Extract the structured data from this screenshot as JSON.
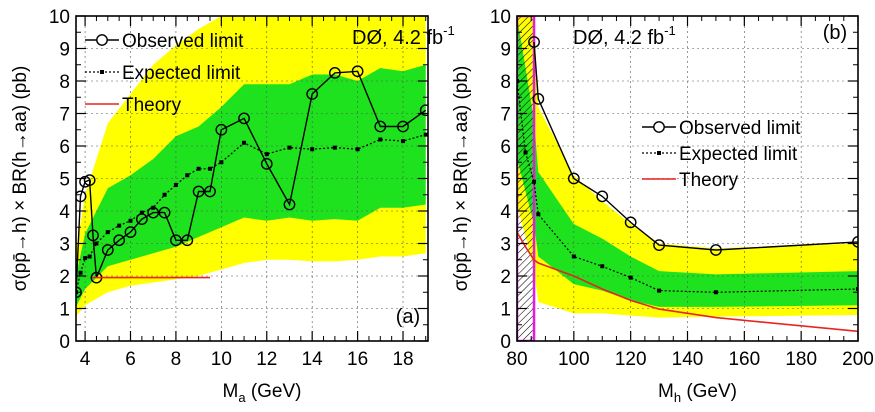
{
  "chart_data": [
    {
      "panel": "(a)",
      "type": "line",
      "experiment_label": "DØ, 4.2 fb",
      "experiment_label_sup": "-1",
      "xlabel": "M",
      "xlabel_sub": "a",
      "xlabel_unit": "(GeV)",
      "ylabel": "σ(pp̄→h) × BR(h→aa) (pb)",
      "xlim": [
        3.6,
        19.1
      ],
      "ylim": [
        0,
        10
      ],
      "xticks": [
        "4",
        "6",
        "8",
        "10",
        "12",
        "14",
        "16",
        "18"
      ],
      "yticks": [
        "0",
        "1",
        "2",
        "3",
        "4",
        "5",
        "6",
        "7",
        "8",
        "9",
        "10"
      ],
      "grid": true,
      "legend_position": "top-left",
      "series": [
        {
          "name": "Observed limit",
          "style": "line-open-circles",
          "color": "#000000",
          "x": [
            3.6,
            3.8,
            4.0,
            4.2,
            4.35,
            4.5,
            5.0,
            5.5,
            6.0,
            6.5,
            7.0,
            7.5,
            8.0,
            8.5,
            9.0,
            9.5,
            10.0,
            11.0,
            12.0,
            13.0,
            14.0,
            15.0,
            16.0,
            17.0,
            18.0,
            19.0
          ],
          "y": [
            1.5,
            4.45,
            4.9,
            4.95,
            3.25,
            1.95,
            2.8,
            3.1,
            3.35,
            3.75,
            3.95,
            3.95,
            3.1,
            3.1,
            4.6,
            4.6,
            6.5,
            6.85,
            5.45,
            4.2,
            7.6,
            8.25,
            8.3,
            6.6,
            6.6,
            7.1
          ]
        },
        {
          "name": "Expected limit",
          "style": "dotted-small-squares",
          "color": "#000000",
          "x": [
            3.6,
            3.8,
            4.0,
            4.2,
            4.5,
            5.0,
            5.5,
            6.0,
            6.5,
            7.0,
            7.5,
            8.0,
            8.5,
            9.0,
            9.5,
            10.0,
            11.0,
            12.0,
            13.0,
            14.0,
            15.0,
            16.0,
            17.0,
            18.0,
            19.0
          ],
          "y": [
            1.5,
            2.1,
            2.55,
            2.6,
            3.0,
            3.35,
            3.55,
            3.7,
            3.95,
            4.1,
            4.5,
            4.8,
            5.1,
            5.3,
            5.3,
            5.5,
            6.1,
            5.75,
            5.95,
            5.9,
            5.95,
            5.9,
            6.2,
            6.15,
            6.35
          ]
        },
        {
          "name": "Theory",
          "style": "line",
          "color": "#e8251f",
          "x": [
            4.3,
            9.5
          ],
          "y": [
            1.95,
            1.95
          ]
        }
      ],
      "band_1sigma": {
        "color": "#1fe21f",
        "x": [
          3.6,
          4.0,
          5.0,
          6.0,
          7.0,
          8.0,
          9.0,
          10.0,
          11.0,
          12.0,
          13.0,
          14.0,
          15.0,
          16.0,
          17.0,
          18.0,
          19.0
        ],
        "lower": [
          1.05,
          1.6,
          2.3,
          2.5,
          2.7,
          2.9,
          3.2,
          3.5,
          3.8,
          3.7,
          3.8,
          3.7,
          3.75,
          3.7,
          4.1,
          4.1,
          4.2
        ],
        "upper": [
          2.0,
          3.3,
          4.7,
          5.1,
          5.6,
          6.3,
          6.6,
          7.2,
          7.9,
          7.9,
          7.9,
          8.2,
          8.2,
          8.0,
          8.4,
          8.3,
          8.5
        ]
      },
      "band_2sigma": {
        "color": "#ffff00",
        "x": [
          3.6,
          4.0,
          5.0,
          6.0,
          7.0,
          8.0,
          9.0,
          10.0,
          11.0,
          12.0,
          13.0,
          14.0,
          15.0,
          16.0,
          17.0,
          18.0,
          19.0
        ],
        "lower": [
          0.75,
          1.1,
          1.5,
          1.7,
          1.8,
          1.9,
          2.0,
          2.2,
          2.4,
          2.5,
          2.5,
          2.45,
          2.45,
          2.5,
          2.6,
          2.6,
          2.7
        ],
        "upper": [
          2.8,
          4.5,
          6.7,
          7.6,
          8.5,
          9.1,
          9.6,
          10.0,
          10.0,
          10.0,
          10.0,
          10.0,
          10.0,
          10.0,
          10.0,
          10.0,
          10.0
        ]
      }
    },
    {
      "panel": "(b)",
      "type": "line",
      "experiment_label": "DØ, 4.2 fb",
      "experiment_label_sup": "-1",
      "xlabel": "M",
      "xlabel_sub": "h",
      "xlabel_unit": "(GeV)",
      "ylabel": "σ(pp̄→h) × BR(h→aa) (pb)",
      "xlim": [
        80,
        200
      ],
      "ylim": [
        0,
        10
      ],
      "xticks": [
        "80",
        "100",
        "120",
        "140",
        "160",
        "180",
        "200"
      ],
      "yticks": [
        "0",
        "1",
        "2",
        "3",
        "4",
        "5",
        "6",
        "7",
        "8",
        "9",
        "10"
      ],
      "grid": true,
      "legend_position": "top-right",
      "excluded_region": {
        "x": [
          80,
          86
        ],
        "fill": "hatched",
        "border_color": "#e01ce0"
      },
      "series": [
        {
          "name": "Observed limit",
          "style": "line-open-circles",
          "color": "#000000",
          "x": [
            86,
            87.5,
            100,
            110,
            120,
            130,
            150,
            200
          ],
          "y": [
            9.2,
            7.45,
            5.0,
            4.45,
            3.65,
            2.95,
            2.8,
            3.05
          ]
        },
        {
          "name": "Expected limit",
          "style": "dotted-small-squares",
          "color": "#000000",
          "x": [
            80,
            83,
            86,
            87.5,
            100,
            110,
            120,
            130,
            150,
            200
          ],
          "y": [
            8.0,
            5.8,
            4.9,
            3.9,
            2.6,
            2.3,
            1.95,
            1.55,
            1.5,
            1.6
          ]
        },
        {
          "name": "Theory",
          "style": "line",
          "color": "#e8251f",
          "x": [
            80,
            83,
            86,
            87.5,
            100,
            110,
            120,
            130,
            150,
            200
          ],
          "y": [
            3.35,
            2.9,
            2.5,
            2.4,
            2.0,
            1.6,
            1.25,
            0.98,
            0.72,
            0.3
          ]
        }
      ],
      "band_1sigma": {
        "color": "#1fe21f",
        "x": [
          80,
          86,
          87.5,
          100,
          110,
          120,
          130,
          150,
          200
        ],
        "lower": [
          5.6,
          3.6,
          2.6,
          1.75,
          1.55,
          1.25,
          1.05,
          1.05,
          1.1
        ],
        "upper": [
          10.0,
          6.8,
          5.2,
          3.6,
          3.15,
          2.6,
          2.15,
          2.05,
          2.15
        ]
      },
      "band_2sigma": {
        "color": "#ffff00",
        "x": [
          80,
          86,
          87.5,
          100,
          110,
          120,
          130,
          150,
          200
        ],
        "lower": [
          4.2,
          2.2,
          1.2,
          0.85,
          0.85,
          0.78,
          0.72,
          0.75,
          0.8
        ],
        "upper": [
          10.0,
          10.0,
          7.2,
          5.1,
          4.3,
          3.6,
          3.0,
          2.85,
          3.0
        ]
      }
    }
  ]
}
